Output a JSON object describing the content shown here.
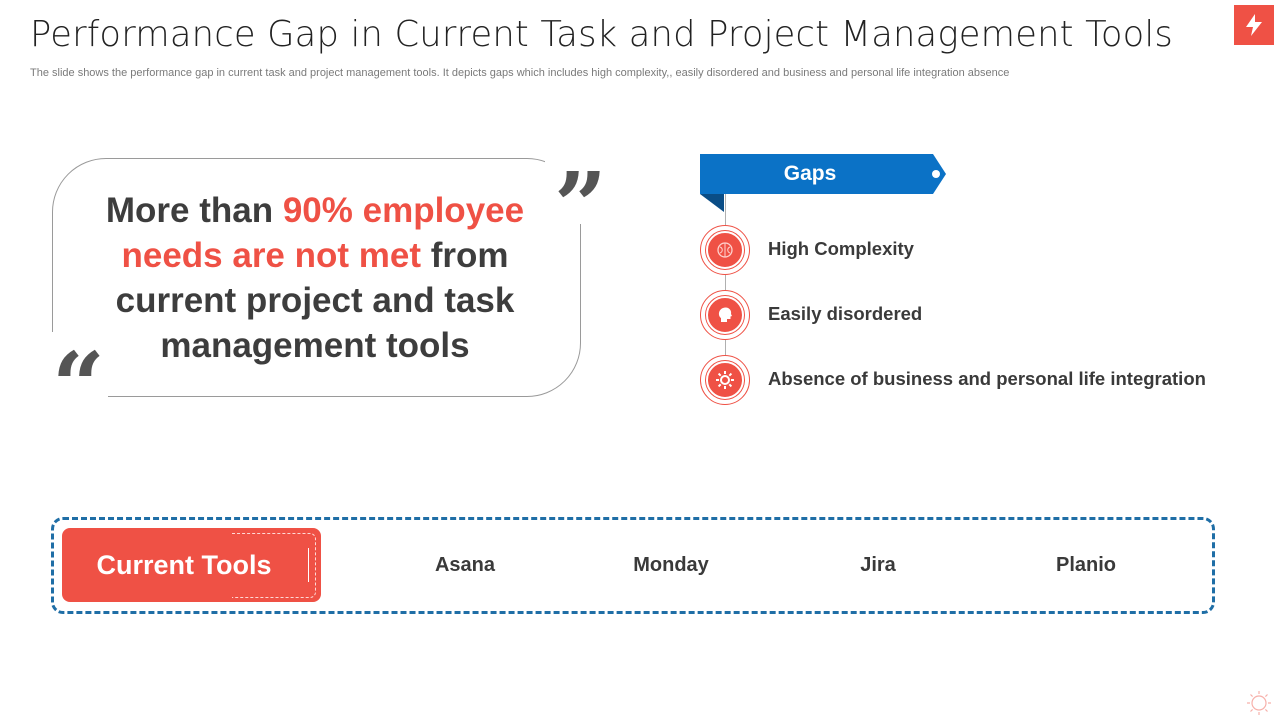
{
  "header": {
    "title": "Performance Gap in Current Task and Project Management Tools",
    "subtitle": "The slide shows the performance gap in current task and project management tools. It depicts gaps which includes high complexity,, easily disordered and business and personal life integration absence"
  },
  "quote": {
    "part1": "More than ",
    "highlight": "90% employee needs are not met",
    "part2": " from current project and task management tools"
  },
  "gaps": {
    "label": "Gaps",
    "items": [
      {
        "label": "High Complexity",
        "icon": "brain-icon"
      },
      {
        "label": "Easily disordered",
        "icon": "head-icon"
      },
      {
        "label": "Absence of business and personal life integration",
        "icon": "gear-cycle-icon"
      }
    ]
  },
  "tools": {
    "label": "Current Tools",
    "items": [
      "Asana",
      "Monday",
      "Jira",
      "Planio"
    ]
  },
  "colors": {
    "accent_red": "#ef5145",
    "accent_blue": "#0b72c6",
    "dash_blue": "#1f6ea6"
  }
}
